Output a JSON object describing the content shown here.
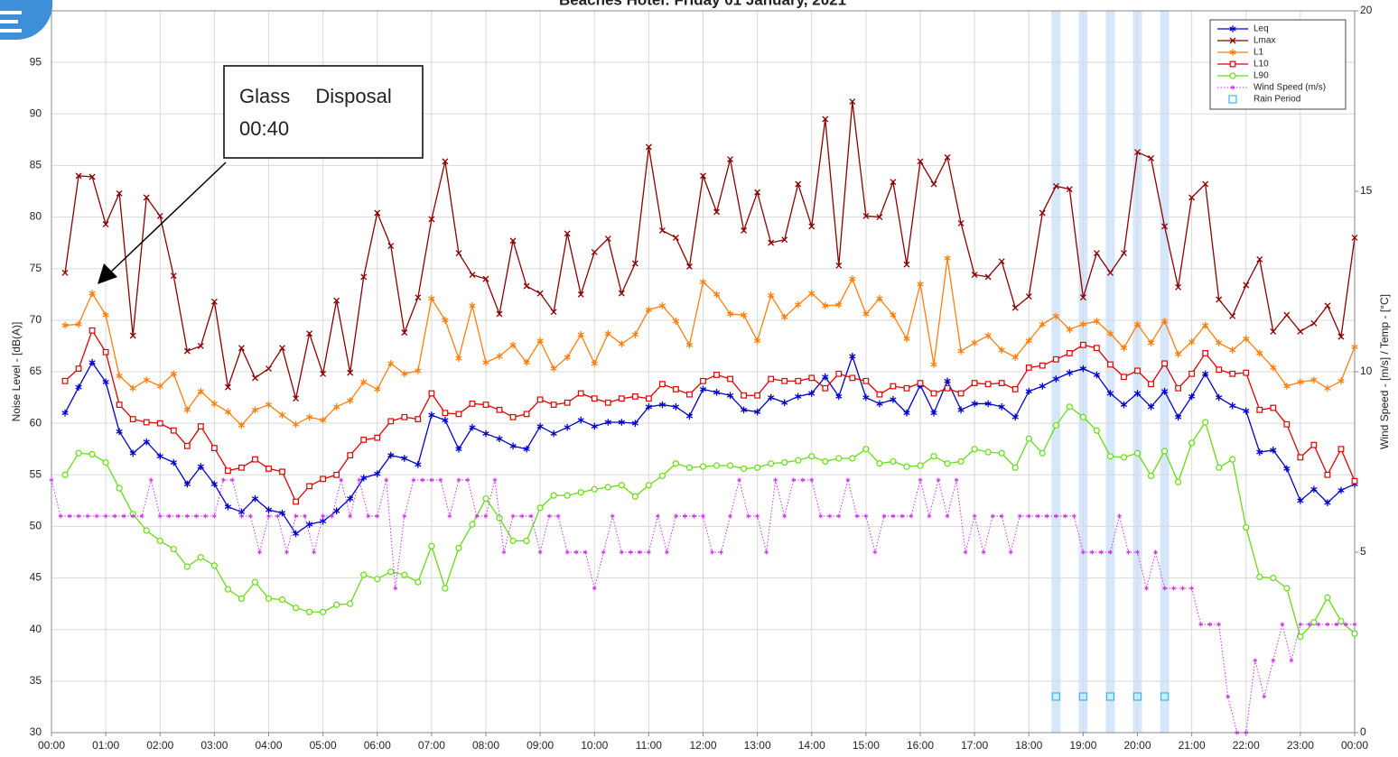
{
  "chart_data": {
    "type": "line",
    "title": "Beaches Hotel: Friday 01 January, 2021",
    "ylabel": "Noise Level - [dB(A)]",
    "y2label": "Wind Speed - [m/s] / Temp - [°C]",
    "annotation": [
      "Glass Disposal",
      "00:40"
    ],
    "xlim": [
      0,
      1440
    ],
    "xticks": [
      {
        "value": 0,
        "label": "00:00"
      },
      {
        "value": 60,
        "label": "01:00"
      },
      {
        "value": 120,
        "label": "02:00"
      },
      {
        "value": 180,
        "label": "03:00"
      },
      {
        "value": 240,
        "label": "04:00"
      },
      {
        "value": 300,
        "label": "05:00"
      },
      {
        "value": 360,
        "label": "06:00"
      },
      {
        "value": 420,
        "label": "07:00"
      },
      {
        "value": 480,
        "label": "08:00"
      },
      {
        "value": 540,
        "label": "09:00"
      },
      {
        "value": 600,
        "label": "10:00"
      },
      {
        "value": 660,
        "label": "11:00"
      },
      {
        "value": 720,
        "label": "12:00"
      },
      {
        "value": 780,
        "label": "13:00"
      },
      {
        "value": 840,
        "label": "14:00"
      },
      {
        "value": 900,
        "label": "15:00"
      },
      {
        "value": 960,
        "label": "16:00"
      },
      {
        "value": 1020,
        "label": "17:00"
      },
      {
        "value": 1080,
        "label": "18:00"
      },
      {
        "value": 1140,
        "label": "19:00"
      },
      {
        "value": 1200,
        "label": "20:00"
      },
      {
        "value": 1260,
        "label": "21:00"
      },
      {
        "value": 1320,
        "label": "22:00"
      },
      {
        "value": 1380,
        "label": "23:00"
      },
      {
        "value": 1440,
        "label": "00:00"
      }
    ],
    "ylim": [
      30,
      100
    ],
    "yticks": [
      30,
      35,
      40,
      45,
      50,
      55,
      60,
      65,
      70,
      75,
      80,
      85,
      90,
      95,
      100
    ],
    "y2lim": [
      0,
      20
    ],
    "y2ticks": [
      0,
      5,
      10,
      15,
      20
    ],
    "grid": true,
    "legend": "top-right",
    "x": [
      15,
      30,
      45,
      60,
      75,
      90,
      105,
      120,
      135,
      150,
      165,
      180,
      195,
      210,
      225,
      240,
      255,
      270,
      285,
      300,
      315,
      330,
      345,
      360,
      375,
      390,
      405,
      420,
      435,
      450,
      465,
      480,
      495,
      510,
      525,
      540,
      555,
      570,
      585,
      600,
      615,
      630,
      645,
      660,
      675,
      690,
      705,
      720,
      735,
      750,
      765,
      780,
      795,
      810,
      825,
      840,
      855,
      870,
      885,
      900,
      915,
      930,
      945,
      960,
      975,
      990,
      1005,
      1020,
      1035,
      1050,
      1065,
      1080,
      1095,
      1110,
      1125,
      1140,
      1155,
      1170,
      1185,
      1200,
      1215,
      1230,
      1245,
      1260,
      1275,
      1290,
      1305,
      1320,
      1335,
      1350,
      1365,
      1380,
      1395,
      1410,
      1425,
      1440
    ],
    "series": [
      {
        "name": "Leq",
        "color": "#0000cc",
        "marker": "asterisk",
        "line_style": "solid",
        "values": [
          61,
          63.5,
          65.9,
          64,
          59.2,
          57.1,
          58.2,
          56.8,
          56.2,
          54.1,
          55.8,
          54.1,
          51.9,
          51.4,
          52.7,
          51.6,
          51.3,
          49.3,
          50.2,
          50.5,
          51.5,
          52.7,
          54.7,
          55.1,
          56.9,
          56.6,
          56,
          60.8,
          60.3,
          57.5,
          59.6,
          59,
          58.5,
          57.8,
          57.5,
          59.7,
          59,
          59.6,
          60.3,
          59.7,
          60.1,
          60.1,
          60,
          61.6,
          61.8,
          61.6,
          60.7,
          63.3,
          63,
          62.7,
          61.3,
          61.1,
          62.5,
          62,
          62.6,
          62.9,
          64.5,
          62.6,
          66.5,
          62.5,
          61.9,
          62.3,
          61,
          63.7,
          61,
          64.1,
          61.3,
          61.9,
          61.9,
          61.6,
          60.6,
          63.1,
          63.6,
          64.3,
          64.9,
          65.3,
          64.7,
          62.9,
          61.8,
          62.9,
          61.6,
          63.1,
          60.6,
          62.6,
          64.8,
          62.5,
          61.7,
          61.2,
          57.2,
          57.4,
          55.6,
          52.5,
          53.6,
          52.3,
          53.5,
          54.1
        ]
      },
      {
        "name": "Lmax",
        "color": "#8b0000",
        "marker": "x",
        "line_style": "solid",
        "values": [
          74.6,
          84,
          83.9,
          79.3,
          82.3,
          68.5,
          81.9,
          80.1,
          74.3,
          67,
          67.5,
          71.8,
          63.5,
          67.3,
          64.4,
          65.3,
          67.3,
          62.4,
          68.7,
          64.8,
          71.9,
          64.9,
          74.2,
          80.4,
          77.2,
          68.8,
          72.2,
          79.8,
          85.4,
          76.5,
          74.4,
          74,
          70.6,
          77.7,
          73.3,
          72.6,
          70.8,
          78.4,
          72.5,
          76.6,
          77.9,
          72.6,
          75.5,
          86.8,
          78.7,
          78,
          75.2,
          84,
          80.5,
          85.6,
          78.7,
          82.4,
          77.5,
          77.8,
          83.2,
          79.1,
          89.5,
          75.3,
          91.2,
          80.1,
          80,
          83.4,
          75.4,
          85.4,
          83.2,
          85.8,
          79.4,
          74.4,
          74.2,
          75.7,
          71.2,
          72.3,
          80.4,
          83,
          82.7,
          72.2,
          76.5,
          74.6,
          76.5,
          86.3,
          85.7,
          79.1,
          73.2,
          81.9,
          83.2,
          72,
          70.4,
          73.4,
          75.9,
          68.9,
          70.5,
          68.9,
          69.7,
          71.4,
          68.4,
          78
        ]
      },
      {
        "name": "L1",
        "color": "#ff7f0e",
        "marker": "asterisk",
        "line_style": "solid",
        "values": [
          69.5,
          69.6,
          72.6,
          70.5,
          64.6,
          63.4,
          64.2,
          63.6,
          64.8,
          61.3,
          63.1,
          61.9,
          61.1,
          59.8,
          61.3,
          61.8,
          60.8,
          59.9,
          60.6,
          60.3,
          61.6,
          62.2,
          64,
          63.3,
          65.8,
          64.8,
          65.1,
          72.1,
          70,
          66.3,
          71.4,
          65.9,
          66.5,
          67.6,
          65.9,
          68,
          65.3,
          66.4,
          68.6,
          65.8,
          68.7,
          67.7,
          68.6,
          71,
          71.4,
          69.9,
          67.6,
          73.7,
          72.5,
          70.6,
          70.5,
          68,
          72.4,
          70.3,
          71.5,
          72.6,
          71.4,
          71.5,
          74,
          70.6,
          72.1,
          70.5,
          68.2,
          73.5,
          65.7,
          76,
          67,
          67.8,
          68.5,
          67.1,
          66.4,
          68,
          69.6,
          70.4,
          69.1,
          69.6,
          69.9,
          68.7,
          67.3,
          69.6,
          67.8,
          69.9,
          66.7,
          67.9,
          69.5,
          67.8,
          67.1,
          68.2,
          66.8,
          65.4,
          63.6,
          64,
          64.2,
          63.4,
          64.1,
          67.4
        ]
      },
      {
        "name": "L10",
        "color": "#e00000",
        "marker": "square",
        "line_style": "solid",
        "values": [
          64.1,
          65.3,
          69,
          66.9,
          61.8,
          60.4,
          60.1,
          60,
          59.3,
          57.8,
          59.7,
          57.6,
          55.4,
          55.7,
          56.5,
          55.6,
          55.3,
          52.4,
          53.9,
          54.6,
          55,
          56.9,
          58.4,
          58.6,
          60.2,
          60.6,
          60.4,
          62.9,
          61,
          60.9,
          61.9,
          61.8,
          61.3,
          60.6,
          60.9,
          62.3,
          61.8,
          62,
          62.9,
          62.4,
          62,
          62.4,
          62.6,
          62.4,
          63.8,
          63.3,
          62.8,
          64.1,
          64.7,
          64.3,
          62.7,
          62.7,
          64.3,
          64.1,
          64.1,
          64.4,
          63.4,
          64.8,
          64.4,
          64.1,
          62.8,
          63.6,
          63.4,
          63.9,
          62.9,
          63.4,
          62.9,
          63.9,
          63.8,
          63.9,
          63.3,
          65.4,
          65.6,
          66.2,
          66.8,
          67.6,
          67.3,
          65.7,
          64.5,
          65.1,
          63.8,
          65.8,
          63.4,
          64.8,
          66.8,
          65.2,
          64.8,
          64.9,
          61.3,
          61.5,
          59.9,
          56.7,
          57.9,
          55,
          57.5,
          54.4
        ]
      },
      {
        "name": "L90",
        "color": "#66dd11",
        "marker": "circle",
        "line_style": "solid",
        "values": [
          55,
          57.1,
          57,
          56.2,
          53.7,
          51.2,
          49.6,
          48.6,
          47.8,
          46.1,
          47,
          46.2,
          43.9,
          43,
          44.6,
          43,
          42.9,
          42.1,
          41.7,
          41.7,
          42.4,
          42.5,
          45.3,
          44.9,
          45.6,
          45.3,
          44.6,
          48.1,
          44,
          47.9,
          50.2,
          52.7,
          50.8,
          48.6,
          48.6,
          51.8,
          53,
          53,
          53.3,
          53.6,
          53.8,
          54,
          52.9,
          54,
          54.9,
          56.1,
          55.7,
          55.8,
          55.9,
          55.9,
          55.6,
          55.7,
          56.1,
          56.2,
          56.4,
          56.8,
          56.3,
          56.6,
          56.6,
          57.5,
          56.1,
          56.3,
          55.8,
          55.9,
          56.8,
          56.1,
          56.3,
          57.5,
          57.2,
          57.1,
          55.7,
          58.5,
          57.1,
          59.8,
          61.6,
          60.6,
          59.3,
          56.8,
          56.7,
          57.1,
          54.9,
          57.3,
          54.3,
          58.1,
          60.1,
          55.7,
          56.5,
          49.9,
          45.1,
          45,
          44,
          39.3,
          40.7,
          43.1,
          40.8,
          39.6
        ]
      },
      {
        "name": "Wind Speed (m/s)",
        "color": "#cc33ee",
        "marker": "star",
        "line_style": "dotted",
        "axis": "y2",
        "x": [
          0,
          10,
          20,
          30,
          40,
          50,
          60,
          70,
          80,
          90,
          100,
          110,
          120,
          130,
          140,
          150,
          160,
          170,
          180,
          190,
          200,
          210,
          220,
          230,
          240,
          250,
          260,
          270,
          280,
          290,
          300,
          310,
          320,
          330,
          340,
          350,
          360,
          370,
          380,
          390,
          400,
          410,
          420,
          430,
          440,
          450,
          460,
          470,
          480,
          490,
          500,
          510,
          520,
          530,
          540,
          550,
          560,
          570,
          580,
          590,
          600,
          610,
          620,
          630,
          640,
          650,
          660,
          670,
          680,
          690,
          700,
          710,
          720,
          730,
          740,
          750,
          760,
          770,
          780,
          790,
          800,
          810,
          820,
          830,
          840,
          850,
          860,
          870,
          880,
          890,
          900,
          910,
          920,
          930,
          940,
          950,
          960,
          970,
          980,
          990,
          1000,
          1010,
          1020,
          1030,
          1040,
          1050,
          1060,
          1070,
          1080,
          1090,
          1100,
          1110,
          1120,
          1130,
          1140,
          1150,
          1160,
          1170,
          1180,
          1190,
          1200,
          1210,
          1220,
          1230,
          1240,
          1250,
          1260,
          1270,
          1280,
          1290,
          1300,
          1310,
          1320,
          1330,
          1340,
          1350,
          1360,
          1370,
          1380,
          1390,
          1400,
          1410,
          1420,
          1430,
          1440
        ],
        "values": [
          7,
          6,
          6,
          6,
          6,
          6,
          6,
          6,
          6,
          6,
          6,
          7,
          6,
          6,
          6,
          6,
          6,
          6,
          6,
          7,
          7,
          6,
          6,
          5,
          6,
          6,
          5,
          6,
          6,
          5,
          6,
          6,
          7,
          6,
          7,
          6,
          6,
          7,
          4,
          6,
          7,
          7,
          7,
          7,
          6,
          7,
          7,
          6,
          6,
          7,
          5,
          6,
          6,
          6,
          5,
          6,
          6,
          5,
          5,
          5,
          4,
          5,
          6,
          5,
          5,
          5,
          5,
          6,
          5,
          6,
          6,
          6,
          6,
          5,
          5,
          6,
          7,
          6,
          6,
          5,
          7,
          6,
          7,
          7,
          7,
          6,
          6,
          6,
          7,
          6,
          6,
          5,
          6,
          6,
          6,
          6,
          7,
          6,
          7,
          6,
          7,
          5,
          6,
          5,
          6,
          6,
          5,
          6,
          6,
          6,
          6,
          6,
          6,
          6,
          5,
          5,
          5,
          5,
          6,
          5,
          5,
          4,
          5,
          4,
          4,
          4,
          4,
          3,
          3,
          3,
          1,
          0,
          0,
          2,
          1,
          2,
          3,
          2,
          3,
          3,
          3,
          3,
          3,
          3,
          3
        ]
      },
      {
        "name": "Rain Period",
        "color": "#33bbee",
        "marker": "rain-square",
        "line_style": "none",
        "x": [
          1110,
          1140,
          1170,
          1200,
          1230
        ],
        "values": [
          33.5,
          33.5,
          33.5,
          33.5,
          33.5
        ]
      }
    ]
  }
}
